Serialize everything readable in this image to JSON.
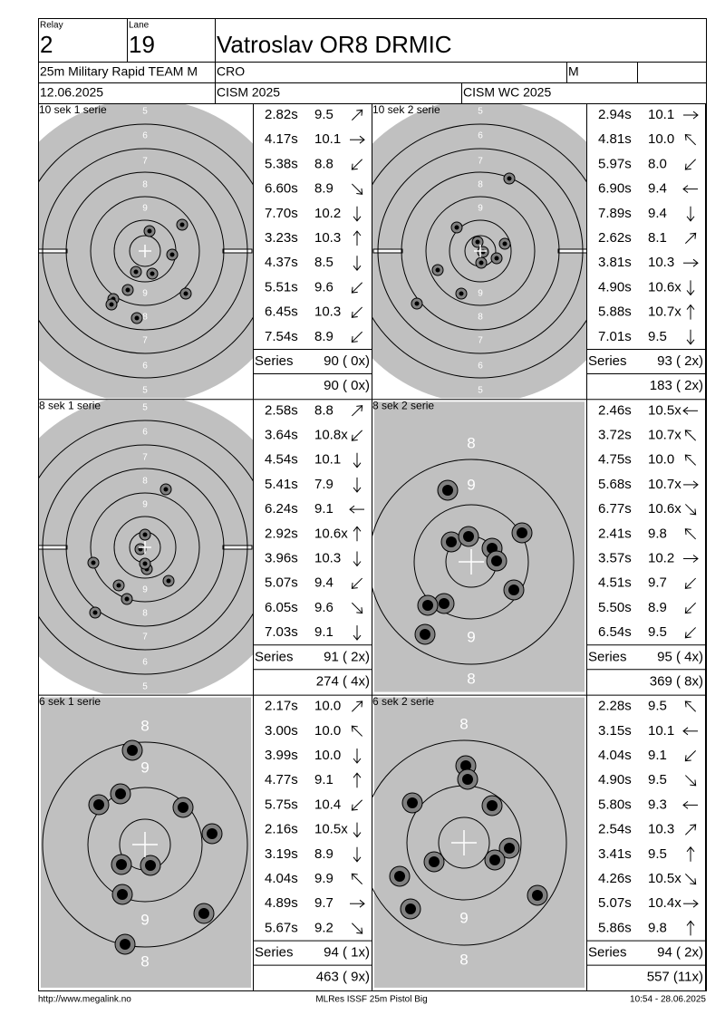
{
  "header": {
    "relay_label": "Relay",
    "relay": "2",
    "lane_label": "Lane",
    "lane": "19",
    "name": "Vatroslav OR8 DRMIC",
    "event": "25m Military Rapid TEAM M",
    "nation": "CRO",
    "gender": "M",
    "date": "12.06.2025",
    "competition": "CISM 2025",
    "match": "CISM WC 2025"
  },
  "panels": [
    {
      "title": "10 sek 1 serie",
      "ring_labels": [
        "5",
        "6",
        "7",
        "8",
        "9"
      ],
      "shots": [
        {
          "time": "2.82s",
          "score": "9.5"
        },
        {
          "time": "4.17s",
          "score": "10.1"
        },
        {
          "time": "5.38s",
          "score": "8.8"
        },
        {
          "time": "6.60s",
          "score": "8.9"
        },
        {
          "time": "7.70s",
          "score": "10.2"
        },
        {
          "time": "3.23s",
          "score": "10.3"
        },
        {
          "time": "4.37s",
          "score": "8.5"
        },
        {
          "time": "5.51s",
          "score": "9.6"
        },
        {
          "time": "6.45s",
          "score": "10.3"
        },
        {
          "time": "7.54s",
          "score": "8.9"
        }
      ],
      "series_label": "Series",
      "series_total": "90 ( 0x)",
      "cumulative": "90 ( 0x)"
    },
    {
      "title": "10 sek 2 serie",
      "ring_labels": [
        "5",
        "6",
        "7",
        "8",
        "9"
      ],
      "shots": [
        {
          "time": "2.94s",
          "score": "10.1"
        },
        {
          "time": "4.81s",
          "score": "10.0"
        },
        {
          "time": "5.97s",
          "score": "8.0"
        },
        {
          "time": "6.90s",
          "score": "9.4"
        },
        {
          "time": "7.89s",
          "score": "9.4"
        },
        {
          "time": "2.62s",
          "score": "8.1"
        },
        {
          "time": "3.81s",
          "score": "10.3"
        },
        {
          "time": "4.90s",
          "score": "10.6x"
        },
        {
          "time": "5.88s",
          "score": "10.7x"
        },
        {
          "time": "7.01s",
          "score": "9.5"
        }
      ],
      "series_label": "Series",
      "series_total": "93 ( 2x)",
      "cumulative": "183 ( 2x)"
    },
    {
      "title": "8 sek 1 serie",
      "ring_labels": [
        "5",
        "6",
        "7",
        "8",
        "9"
      ],
      "shots": [
        {
          "time": "2.58s",
          "score": "8.8"
        },
        {
          "time": "3.64s",
          "score": "10.8x"
        },
        {
          "time": "4.54s",
          "score": "10.1"
        },
        {
          "time": "5.41s",
          "score": "7.9"
        },
        {
          "time": "6.24s",
          "score": "9.1"
        },
        {
          "time": "2.92s",
          "score": "10.6x"
        },
        {
          "time": "3.96s",
          "score": "10.3"
        },
        {
          "time": "5.07s",
          "score": "9.4"
        },
        {
          "time": "6.05s",
          "score": "9.6"
        },
        {
          "time": "7.03s",
          "score": "9.1"
        }
      ],
      "series_label": "Series",
      "series_total": "91 ( 2x)",
      "cumulative": "274 ( 4x)"
    },
    {
      "title": "8 sek 2 serie",
      "ring_labels": [
        "8",
        "9"
      ],
      "shots": [
        {
          "time": "2.46s",
          "score": "10.5x"
        },
        {
          "time": "3.72s",
          "score": "10.7x"
        },
        {
          "time": "4.75s",
          "score": "10.0"
        },
        {
          "time": "5.68s",
          "score": "10.7x"
        },
        {
          "time": "6.77s",
          "score": "10.6x"
        },
        {
          "time": "2.41s",
          "score": "9.8"
        },
        {
          "time": "3.57s",
          "score": "10.2"
        },
        {
          "time": "4.51s",
          "score": "9.7"
        },
        {
          "time": "5.50s",
          "score": "8.9"
        },
        {
          "time": "6.54s",
          "score": "9.5"
        }
      ],
      "series_label": "Series",
      "series_total": "95 ( 4x)",
      "cumulative": "369 ( 8x)"
    },
    {
      "title": "6 sek 1 serie",
      "ring_labels": [
        "8",
        "9"
      ],
      "shots": [
        {
          "time": "2.17s",
          "score": "10.0"
        },
        {
          "time": "3.00s",
          "score": "10.0"
        },
        {
          "time": "3.99s",
          "score": "10.0"
        },
        {
          "time": "4.77s",
          "score": "9.1"
        },
        {
          "time": "5.75s",
          "score": "10.4"
        },
        {
          "time": "2.16s",
          "score": "10.5x"
        },
        {
          "time": "3.19s",
          "score": "8.9"
        },
        {
          "time": "4.04s",
          "score": "9.9"
        },
        {
          "time": "4.89s",
          "score": "9.7"
        },
        {
          "time": "5.67s",
          "score": "9.2"
        }
      ],
      "series_label": "Series",
      "series_total": "94 ( 1x)",
      "cumulative": "463 ( 9x)"
    },
    {
      "title": "6 sek 2 serie",
      "ring_labels": [
        "8",
        "9"
      ],
      "shots": [
        {
          "time": "2.28s",
          "score": "9.5"
        },
        {
          "time": "3.15s",
          "score": "10.1"
        },
        {
          "time": "4.04s",
          "score": "9.1"
        },
        {
          "time": "4.90s",
          "score": "9.5"
        },
        {
          "time": "5.80s",
          "score": "9.3"
        },
        {
          "time": "2.54s",
          "score": "10.3"
        },
        {
          "time": "3.41s",
          "score": "9.5"
        },
        {
          "time": "4.26s",
          "score": "10.5x"
        },
        {
          "time": "5.07s",
          "score": "10.4x"
        },
        {
          "time": "5.86s",
          "score": "9.8"
        }
      ],
      "series_label": "Series",
      "series_total": "94 ( 2x)",
      "cumulative": "557 (11x)"
    }
  ],
  "footer": {
    "url": "http://www.megalink.no",
    "software": "MLRes ISSF 25m Pistol Big",
    "timestamp": "10:54 - 28.06.2025"
  }
}
